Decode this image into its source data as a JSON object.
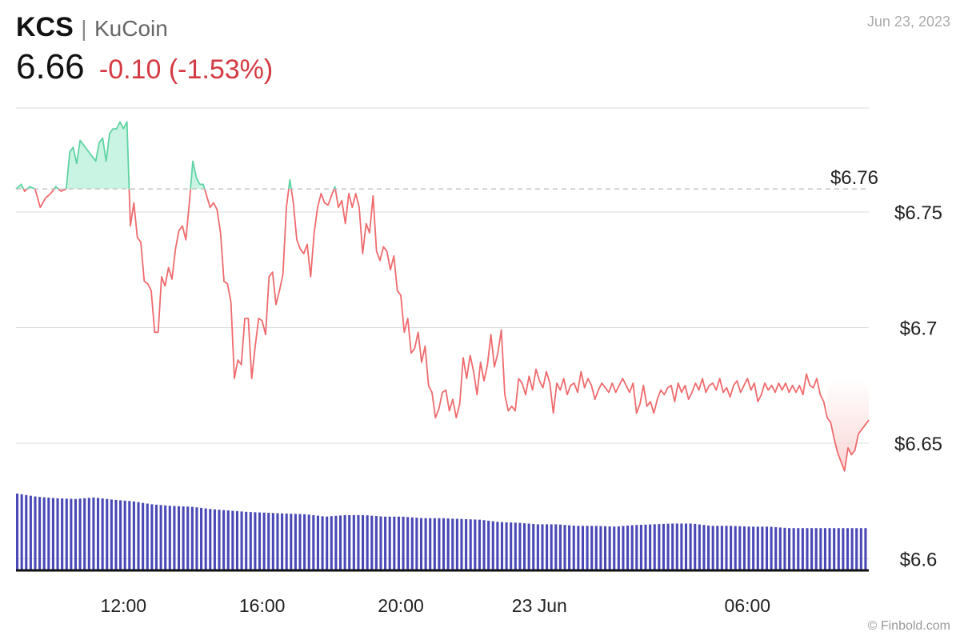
{
  "header": {
    "symbol": "KCS",
    "separator": "|",
    "exchange": "KuCoin",
    "price": "6.66",
    "change": "-0.10",
    "change_pct": "(-1.53%)",
    "date": "Jun 23, 2023"
  },
  "credit": "© Finbold.com",
  "colors": {
    "up_line": "#5fd3a4",
    "up_fill": "#c9f3e2",
    "down_line": "#ee6b6e",
    "down_fill": "#fbd6d6",
    "volume": "#4a48b6",
    "grid": "#dddddd",
    "reference": "#bbbbbb"
  },
  "chart_data": {
    "type": "line",
    "reference_value": 6.76,
    "reference_label": "$6.76",
    "y_axis": {
      "range": [
        6.595,
        6.795
      ],
      "ticks": [
        {
          "value": 6.75,
          "label": "$6.75"
        },
        {
          "value": 6.7,
          "label": "$6.7"
        },
        {
          "value": 6.65,
          "label": "$6.65"
        },
        {
          "value": 6.6,
          "label": "$6.6"
        }
      ]
    },
    "x_axis": {
      "range_hours": [
        8.9,
        33.5
      ],
      "ticks": [
        {
          "hour": 12,
          "label": "12:00"
        },
        {
          "hour": 16,
          "label": "16:00"
        },
        {
          "hour": 20,
          "label": "20:00"
        },
        {
          "hour": 24,
          "label": "23 Jun"
        },
        {
          "hour": 30,
          "label": "06:00"
        }
      ]
    },
    "series": [
      {
        "values": [
          [
            8.9,
            6.76
          ],
          [
            9.05,
            6.762
          ],
          [
            9.15,
            6.759
          ],
          [
            9.3,
            6.761
          ],
          [
            9.45,
            6.76
          ],
          [
            9.6,
            6.752
          ],
          [
            9.75,
            6.756
          ],
          [
            9.9,
            6.758
          ],
          [
            10.05,
            6.761
          ],
          [
            10.2,
            6.759
          ],
          [
            10.35,
            6.76
          ],
          [
            10.45,
            6.776
          ],
          [
            10.55,
            6.778
          ],
          [
            10.65,
            6.771
          ],
          [
            10.75,
            6.781
          ],
          [
            10.9,
            6.778
          ],
          [
            11.05,
            6.775
          ],
          [
            11.2,
            6.772
          ],
          [
            11.3,
            6.78
          ],
          [
            11.4,
            6.782
          ],
          [
            11.5,
            6.772
          ],
          [
            11.6,
            6.784
          ],
          [
            11.7,
            6.786
          ],
          [
            11.8,
            6.786
          ],
          [
            11.9,
            6.789
          ],
          [
            12.0,
            6.786
          ],
          [
            12.1,
            6.789
          ],
          [
            12.2,
            6.744
          ],
          [
            12.3,
            6.754
          ],
          [
            12.4,
            6.739
          ],
          [
            12.5,
            6.737
          ],
          [
            12.6,
            6.72
          ],
          [
            12.7,
            6.719
          ],
          [
            12.8,
            6.716
          ],
          [
            12.9,
            6.698
          ],
          [
            13.0,
            6.698
          ],
          [
            13.1,
            6.722
          ],
          [
            13.2,
            6.718
          ],
          [
            13.3,
            6.726
          ],
          [
            13.4,
            6.721
          ],
          [
            13.5,
            6.734
          ],
          [
            13.6,
            6.742
          ],
          [
            13.7,
            6.744
          ],
          [
            13.8,
            6.738
          ],
          [
            13.9,
            6.754
          ],
          [
            14.0,
            6.772
          ],
          [
            14.1,
            6.765
          ],
          [
            14.2,
            6.762
          ],
          [
            14.3,
            6.762
          ],
          [
            14.4,
            6.757
          ],
          [
            14.5,
            6.752
          ],
          [
            14.6,
            6.754
          ],
          [
            14.7,
            6.751
          ],
          [
            14.8,
            6.741
          ],
          [
            14.9,
            6.72
          ],
          [
            15.0,
            6.719
          ],
          [
            15.1,
            6.711
          ],
          [
            15.2,
            6.678
          ],
          [
            15.3,
            6.686
          ],
          [
            15.4,
            6.684
          ],
          [
            15.5,
            6.704
          ],
          [
            15.6,
            6.704
          ],
          [
            15.7,
            6.678
          ],
          [
            15.8,
            6.692
          ],
          [
            15.9,
            6.704
          ],
          [
            16.0,
            6.703
          ],
          [
            16.1,
            6.697
          ],
          [
            16.2,
            6.722
          ],
          [
            16.3,
            6.724
          ],
          [
            16.4,
            6.71
          ],
          [
            16.5,
            6.716
          ],
          [
            16.6,
            6.723
          ],
          [
            16.7,
            6.752
          ],
          [
            16.8,
            6.764
          ],
          [
            16.9,
            6.754
          ],
          [
            17.0,
            6.738
          ],
          [
            17.1,
            6.734
          ],
          [
            17.2,
            6.732
          ],
          [
            17.3,
            6.736
          ],
          [
            17.4,
            6.722
          ],
          [
            17.5,
            6.741
          ],
          [
            17.6,
            6.752
          ],
          [
            17.7,
            6.758
          ],
          [
            17.8,
            6.754
          ],
          [
            17.9,
            6.753
          ],
          [
            18.0,
            6.757
          ],
          [
            18.1,
            6.761
          ],
          [
            18.2,
            6.752
          ],
          [
            18.3,
            6.755
          ],
          [
            18.4,
            6.745
          ],
          [
            18.5,
            6.758
          ],
          [
            18.6,
            6.752
          ],
          [
            18.7,
            6.758
          ],
          [
            18.8,
            6.752
          ],
          [
            18.9,
            6.732
          ],
          [
            19.0,
            6.745
          ],
          [
            19.1,
            6.741
          ],
          [
            19.2,
            6.757
          ],
          [
            19.3,
            6.733
          ],
          [
            19.4,
            6.729
          ],
          [
            19.5,
            6.735
          ],
          [
            19.6,
            6.733
          ],
          [
            19.7,
            6.725
          ],
          [
            19.8,
            6.731
          ],
          [
            19.9,
            6.716
          ],
          [
            20.0,
            6.714
          ],
          [
            20.1,
            6.698
          ],
          [
            20.2,
            6.704
          ],
          [
            20.3,
            6.689
          ],
          [
            20.4,
            6.691
          ],
          [
            20.5,
            6.698
          ],
          [
            20.6,
            6.685
          ],
          [
            20.7,
            6.692
          ],
          [
            20.8,
            6.675
          ],
          [
            20.9,
            6.672
          ],
          [
            21.0,
            6.661
          ],
          [
            21.1,
            6.665
          ],
          [
            21.2,
            6.672
          ],
          [
            21.3,
            6.673
          ],
          [
            21.4,
            6.664
          ],
          [
            21.5,
            6.669
          ],
          [
            21.6,
            6.661
          ],
          [
            21.7,
            6.667
          ],
          [
            21.8,
            6.687
          ],
          [
            21.9,
            6.678
          ],
          [
            22.0,
            6.688
          ],
          [
            22.1,
            6.681
          ],
          [
            22.2,
            6.671
          ],
          [
            22.3,
            6.685
          ],
          [
            22.4,
            6.677
          ],
          [
            22.5,
            6.684
          ],
          [
            22.6,
            6.697
          ],
          [
            22.7,
            6.683
          ],
          [
            22.8,
            6.689
          ],
          [
            22.9,
            6.699
          ],
          [
            23.0,
            6.671
          ],
          [
            23.1,
            6.664
          ],
          [
            23.2,
            6.666
          ],
          [
            23.3,
            6.664
          ],
          [
            23.4,
            6.678
          ],
          [
            23.5,
            6.676
          ],
          [
            23.6,
            6.671
          ],
          [
            23.7,
            6.679
          ],
          [
            23.8,
            6.673
          ],
          [
            23.9,
            6.682
          ],
          [
            24.0,
            6.677
          ],
          [
            24.1,
            6.674
          ],
          [
            24.2,
            6.681
          ],
          [
            24.3,
            6.676
          ],
          [
            24.4,
            6.663
          ],
          [
            24.5,
            6.676
          ],
          [
            24.6,
            6.673
          ],
          [
            24.7,
            6.678
          ],
          [
            24.8,
            6.671
          ],
          [
            24.9,
            6.675
          ],
          [
            25.0,
            6.676
          ],
          [
            25.1,
            6.672
          ],
          [
            25.2,
            6.681
          ],
          [
            25.3,
            6.674
          ],
          [
            25.4,
            6.678
          ],
          [
            25.5,
            6.675
          ],
          [
            25.6,
            6.669
          ],
          [
            25.7,
            6.673
          ],
          [
            25.8,
            6.676
          ],
          [
            25.9,
            6.674
          ],
          [
            26.0,
            6.672
          ],
          [
            26.1,
            6.676
          ],
          [
            26.2,
            6.672
          ],
          [
            26.3,
            6.675
          ],
          [
            26.4,
            6.678
          ],
          [
            26.5,
            6.675
          ],
          [
            26.6,
            6.672
          ],
          [
            26.7,
            6.676
          ],
          [
            26.8,
            6.663
          ],
          [
            26.9,
            6.667
          ],
          [
            27.0,
            6.675
          ],
          [
            27.1,
            6.666
          ],
          [
            27.2,
            6.668
          ],
          [
            27.3,
            6.663
          ],
          [
            27.4,
            6.669
          ],
          [
            27.5,
            6.673
          ],
          [
            27.6,
            6.671
          ],
          [
            27.7,
            6.674
          ],
          [
            27.8,
            6.675
          ],
          [
            27.9,
            6.668
          ],
          [
            28.0,
            6.676
          ],
          [
            28.1,
            6.672
          ],
          [
            28.2,
            6.675
          ],
          [
            28.3,
            6.669
          ],
          [
            28.4,
            6.672
          ],
          [
            28.5,
            6.676
          ],
          [
            28.6,
            6.673
          ],
          [
            28.7,
            6.678
          ],
          [
            28.8,
            6.672
          ],
          [
            28.9,
            6.675
          ],
          [
            29.0,
            6.676
          ],
          [
            29.1,
            6.673
          ],
          [
            29.2,
            6.678
          ],
          [
            29.3,
            6.672
          ],
          [
            29.4,
            6.674
          ],
          [
            29.5,
            6.67
          ],
          [
            29.6,
            6.675
          ],
          [
            29.7,
            6.677
          ],
          [
            29.8,
            6.672
          ],
          [
            29.9,
            6.675
          ],
          [
            30.0,
            6.678
          ],
          [
            30.1,
            6.673
          ],
          [
            30.2,
            6.676
          ],
          [
            30.3,
            6.668
          ],
          [
            30.4,
            6.671
          ],
          [
            30.5,
            6.676
          ],
          [
            30.6,
            6.673
          ],
          [
            30.7,
            6.675
          ],
          [
            30.8,
            6.672
          ],
          [
            30.9,
            6.676
          ],
          [
            31.0,
            6.673
          ],
          [
            31.1,
            6.676
          ],
          [
            31.2,
            6.672
          ],
          [
            31.3,
            6.675
          ],
          [
            31.4,
            6.672
          ],
          [
            31.5,
            6.675
          ],
          [
            31.6,
            6.671
          ],
          [
            31.7,
            6.68
          ],
          [
            31.8,
            6.675
          ],
          [
            31.9,
            6.674
          ],
          [
            32.0,
            6.678
          ],
          [
            32.1,
            6.671
          ],
          [
            32.2,
            6.668
          ],
          [
            32.3,
            6.661
          ],
          [
            32.4,
            6.659
          ],
          [
            32.5,
            6.652
          ],
          [
            32.6,
            6.646
          ],
          [
            32.7,
            6.642
          ],
          [
            32.8,
            6.638
          ],
          [
            32.9,
            6.648
          ],
          [
            33.0,
            6.645
          ],
          [
            33.1,
            6.647
          ],
          [
            33.2,
            6.654
          ],
          [
            33.3,
            6.656
          ],
          [
            33.5,
            6.66
          ]
        ]
      }
    ],
    "volume": {
      "x_range_hours": [
        8.9,
        33.5
      ],
      "relative_heights": [
        1.0,
        0.96,
        0.94,
        0.93,
        0.95,
        0.92,
        0.9,
        0.86,
        0.84,
        0.83,
        0.8,
        0.78,
        0.76,
        0.75,
        0.74,
        0.73,
        0.7,
        0.72,
        0.72,
        0.7,
        0.7,
        0.68,
        0.68,
        0.67,
        0.66,
        0.63,
        0.62,
        0.6,
        0.6,
        0.58,
        0.58,
        0.57,
        0.59,
        0.6,
        0.61,
        0.61,
        0.58,
        0.58,
        0.57,
        0.57,
        0.55,
        0.55,
        0.55,
        0.55,
        0.55
      ]
    }
  }
}
